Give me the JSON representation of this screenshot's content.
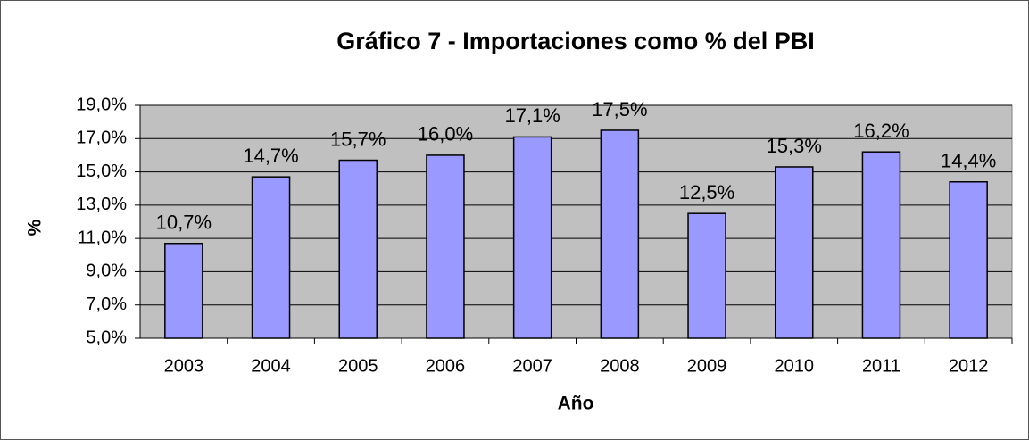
{
  "chart_data": {
    "type": "bar",
    "title": "Gráfico 7 - Importaciones como % del PBI",
    "xlabel": "Año",
    "ylabel": "%",
    "categories": [
      "2003",
      "2004",
      "2005",
      "2006",
      "2007",
      "2008",
      "2009",
      "2010",
      "2011",
      "2012"
    ],
    "values": [
      10.7,
      14.7,
      15.7,
      16.0,
      17.1,
      17.5,
      12.5,
      15.3,
      16.2,
      14.4
    ],
    "value_labels": [
      "10,7%",
      "14,7%",
      "15,7%",
      "16,0%",
      "17,1%",
      "17,5%",
      "12,5%",
      "15,3%",
      "16,2%",
      "14,4%"
    ],
    "color": "#9999ff",
    "ylim": [
      5,
      19
    ],
    "yticks": [
      {
        "value": 5,
        "label": "5,0%"
      },
      {
        "value": 7,
        "label": "7,0%"
      },
      {
        "value": 9,
        "label": "9,0%"
      },
      {
        "value": 11,
        "label": "11,0%"
      },
      {
        "value": 13,
        "label": "13,0%"
      },
      {
        "value": 15,
        "label": "15,0%"
      },
      {
        "value": 17,
        "label": "17,0%"
      },
      {
        "value": 19,
        "label": "19,0%"
      }
    ],
    "grid": true
  }
}
